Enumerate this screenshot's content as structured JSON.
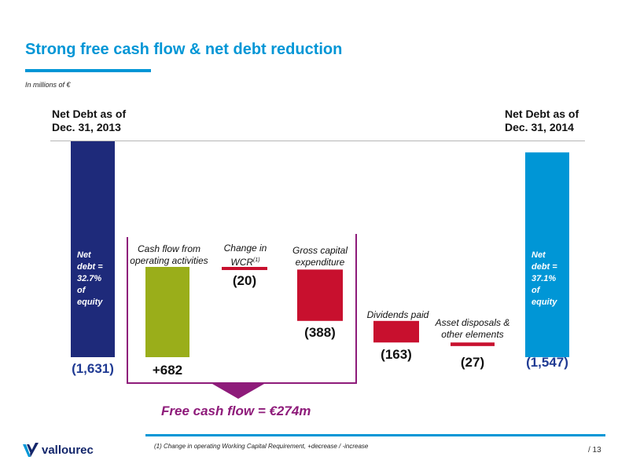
{
  "header": {
    "title": "Strong free cash flow & net debt reduction",
    "subtitle": "In millions of €"
  },
  "columns": {
    "left_head": [
      "Net Debt as of",
      "Dec. 31, 2013"
    ],
    "right_head": [
      "Net Debt as of",
      "Dec. 31, 2014"
    ]
  },
  "chart_data": {
    "type": "bar",
    "subtype": "waterfall",
    "unit": "€m",
    "categories": [
      "Net Debt as of Dec. 31, 2013",
      "Cash flow from operating activities",
      "Change in WCR(1)",
      "Gross capital expenditure",
      "Dividends paid",
      "Asset disposals & other elements",
      "Net Debt as of Dec. 31, 2014"
    ],
    "values": [
      -1631,
      682,
      -20,
      -388,
      -163,
      -27,
      -1547
    ],
    "value_labels": [
      "(1,631)",
      "+682",
      "(20)",
      "(388)",
      "(163)",
      "(27)",
      "(1,547)"
    ],
    "bar_labels": [
      "",
      "Cash flow from|operating activities",
      "Change in|WCR(1)",
      "Gross capital|expenditure",
      "Dividends paid",
      "Asset disposals &|other elements",
      ""
    ],
    "inner_labels": {
      "start": [
        "Net",
        "debt =",
        "32.7%",
        "of",
        "equity"
      ],
      "end": [
        "Net",
        "debt =",
        "37.1%",
        "of",
        "equity"
      ]
    },
    "colors": {
      "start": "#1e2a7a",
      "operating": "#9aae1a",
      "negative": "#c8102e",
      "end": "#0096d6",
      "bracket": "#8e1b7a"
    },
    "annotation": "Free cash flow = €274m"
  },
  "footer": {
    "footnote": "(1)  Change in operating Working Capital Requirement, +decrease / -increase",
    "page": "/ 13",
    "logo_text": "vallourec",
    "logo_icon": "vallourec-v-logo"
  }
}
